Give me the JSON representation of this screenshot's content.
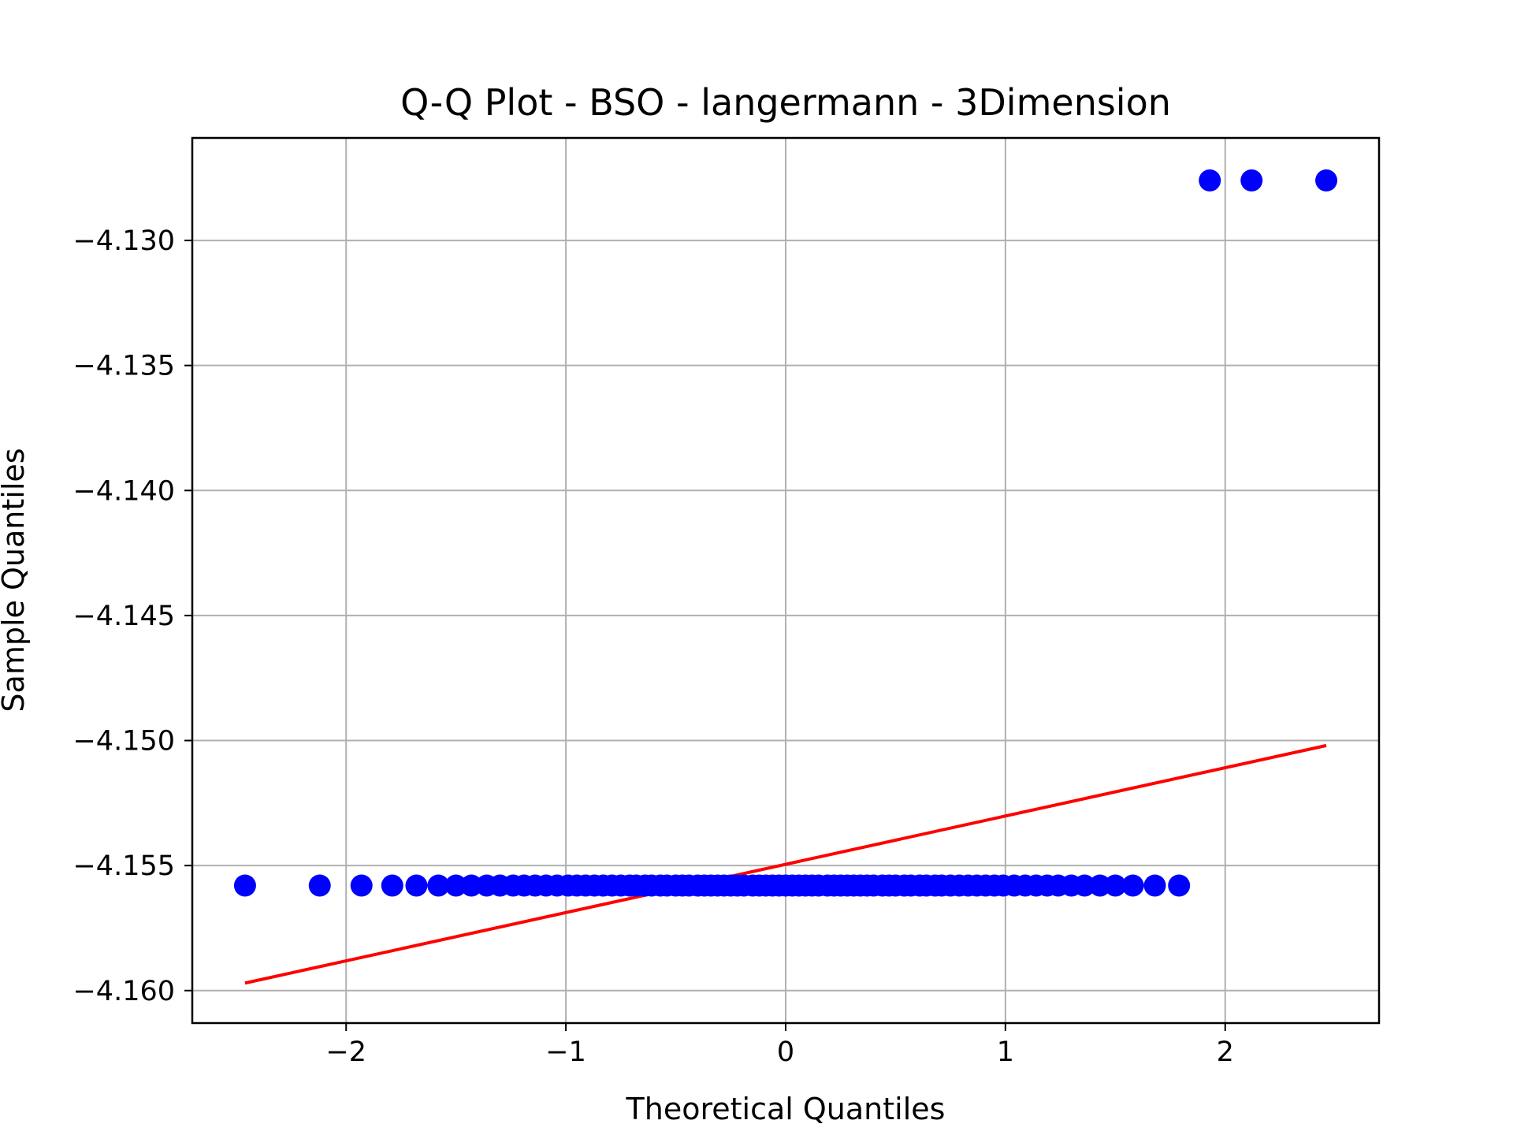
{
  "chart_data": {
    "type": "scatter",
    "title": "Q-Q Plot - BSO - langermann - 3Dimension",
    "xlabel": "Theoretical Quantiles",
    "ylabel": "Sample Quantiles",
    "xlim": [
      -2.7,
      2.7
    ],
    "ylim": [
      -4.1613,
      -4.1259
    ],
    "xticks": [
      -2,
      -1,
      0,
      1,
      2
    ],
    "xtick_labels": [
      "−2",
      "−1",
      "0",
      "1",
      "2"
    ],
    "yticks": [
      -4.16,
      -4.155,
      -4.15,
      -4.145,
      -4.14,
      -4.135,
      -4.13
    ],
    "ytick_labels": [
      "−4.160",
      "−4.155",
      "−4.150",
      "−4.145",
      "−4.140",
      "−4.135",
      "−4.130"
    ],
    "grid": true,
    "series": [
      {
        "marker": "circle",
        "color": "#0000ff",
        "x": [
          -2.46,
          -2.12,
          -1.93,
          -1.79,
          -1.68,
          -1.58,
          -1.5,
          -1.43,
          -1.36,
          -1.3,
          -1.24,
          -1.19,
          -1.14,
          -1.09,
          -1.04,
          -0.99,
          -0.95,
          -0.91,
          -0.87,
          -0.83,
          -0.79,
          -0.75,
          -0.71,
          -0.68,
          -0.64,
          -0.61,
          -0.57,
          -0.54,
          -0.5,
          -0.47,
          -0.44,
          -0.4,
          -0.37,
          -0.34,
          -0.31,
          -0.28,
          -0.25,
          -0.22,
          -0.19,
          -0.15,
          -0.12,
          -0.09,
          -0.06,
          -0.03,
          0.0,
          0.03,
          0.06,
          0.09,
          0.12,
          0.15,
          0.19,
          0.22,
          0.25,
          0.28,
          0.31,
          0.34,
          0.37,
          0.4,
          0.44,
          0.47,
          0.5,
          0.54,
          0.57,
          0.61,
          0.64,
          0.68,
          0.71,
          0.75,
          0.79,
          0.83,
          0.87,
          0.91,
          0.95,
          0.99,
          1.04,
          1.09,
          1.14,
          1.19,
          1.24,
          1.3,
          1.36,
          1.43,
          1.5,
          1.58,
          1.68,
          1.79,
          1.93,
          2.12,
          2.46
        ],
        "y": [
          -4.1558,
          -4.1558,
          -4.1558,
          -4.1558,
          -4.1558,
          -4.1558,
          -4.1558,
          -4.1558,
          -4.1558,
          -4.1558,
          -4.1558,
          -4.1558,
          -4.1558,
          -4.1558,
          -4.1558,
          -4.1558,
          -4.1558,
          -4.1558,
          -4.1558,
          -4.1558,
          -4.1558,
          -4.1558,
          -4.1558,
          -4.1558,
          -4.1558,
          -4.1558,
          -4.1558,
          -4.1558,
          -4.1558,
          -4.1558,
          -4.1558,
          -4.1558,
          -4.1558,
          -4.1558,
          -4.1558,
          -4.1558,
          -4.1558,
          -4.1558,
          -4.1558,
          -4.1558,
          -4.1558,
          -4.1558,
          -4.1558,
          -4.1558,
          -4.1558,
          -4.1558,
          -4.1558,
          -4.1558,
          -4.1558,
          -4.1558,
          -4.1558,
          -4.1558,
          -4.1558,
          -4.1558,
          -4.1558,
          -4.1558,
          -4.1558,
          -4.1558,
          -4.1558,
          -4.1558,
          -4.1558,
          -4.1558,
          -4.1558,
          -4.1558,
          -4.1558,
          -4.1558,
          -4.1558,
          -4.1558,
          -4.1558,
          -4.1558,
          -4.1558,
          -4.1558,
          -4.1558,
          -4.1558,
          -4.1558,
          -4.1558,
          -4.1558,
          -4.1558,
          -4.1558,
          -4.1558,
          -4.1558,
          -4.1558,
          -4.1558,
          -4.1558,
          -4.1558,
          -4.1558,
          -4.1276,
          -4.1276,
          -4.1276
        ]
      },
      {
        "type": "line",
        "color": "#ff0000",
        "x": [
          -2.46,
          2.46
        ],
        "y": [
          -4.1597,
          -4.1502
        ]
      }
    ]
  }
}
